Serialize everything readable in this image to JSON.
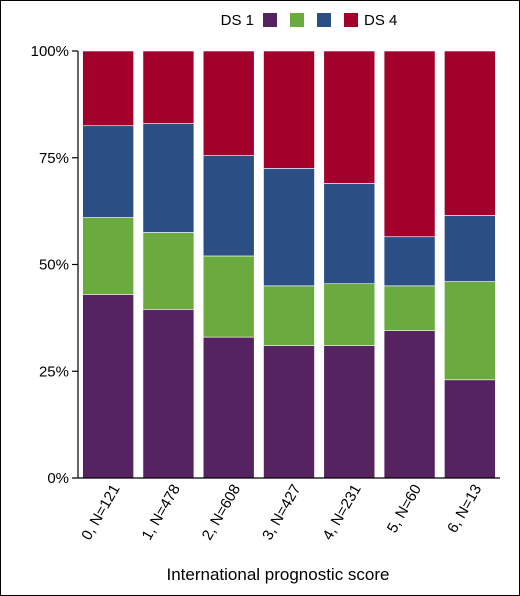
{
  "chart_data": {
    "type": "bar",
    "stacked": true,
    "percent": true,
    "categories": [
      "0, N=121",
      "1, N=478",
      "2, N=608",
      "3, N=427",
      "4, N=231",
      "5, N=60",
      "6, N=13"
    ],
    "series": [
      {
        "name": "DS 1",
        "color": "#55235f",
        "values": [
          43,
          39.5,
          33,
          31,
          31,
          34.5,
          23
        ]
      },
      {
        "name": "",
        "color": "#6aaa3f",
        "values": [
          18,
          18,
          19,
          14,
          14.5,
          10.5,
          23
        ]
      },
      {
        "name": "",
        "color": "#2b4e85",
        "values": [
          21.5,
          25.5,
          23.5,
          27.5,
          23.5,
          11.5,
          15.5
        ]
      },
      {
        "name": "DS 4",
        "color": "#a3002b",
        "values": [
          17.5,
          17,
          24.5,
          27.5,
          31,
          43.5,
          38.5
        ]
      }
    ],
    "ylim": [
      0,
      100
    ],
    "yticks": [
      "0%",
      "25%",
      "50%",
      "75%",
      "100%"
    ],
    "xlabel": "International prognostic score",
    "ylabel": "",
    "legend": "top"
  }
}
